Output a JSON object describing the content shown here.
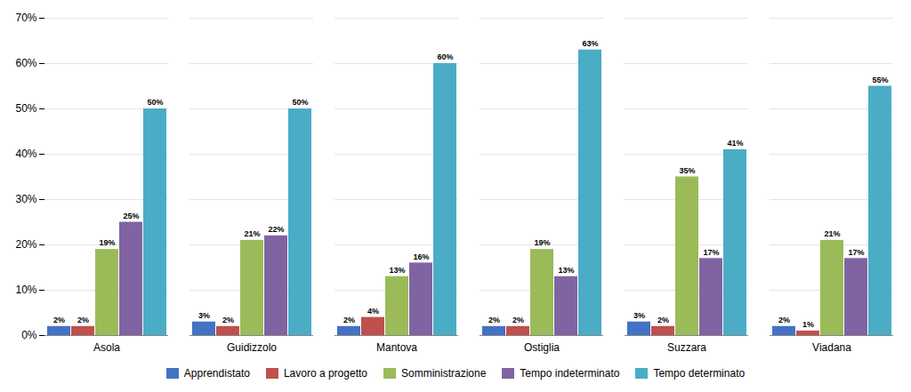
{
  "chart_data": {
    "type": "bar",
    "categories": [
      "Asola",
      "Guidizzolo",
      "Mantova",
      "Ostiglia",
      "Suzzara",
      "Viadana"
    ],
    "series": [
      {
        "name": "Apprendistato",
        "color": "#4472C4",
        "values": [
          2,
          3,
          2,
          2,
          3,
          2
        ],
        "value_labels": [
          "2%",
          "3%",
          "2%",
          "2%",
          "3%",
          "2%"
        ]
      },
      {
        "name": "Lavoro a progetto",
        "color": "#C0504D",
        "values": [
          2,
          2,
          4,
          2,
          2,
          1
        ],
        "value_labels": [
          "2%",
          "2%",
          "4%",
          "2%",
          "2%",
          "1%"
        ]
      },
      {
        "name": "Somministrazione",
        "color": "#9BBB59",
        "values": [
          19,
          21,
          13,
          19,
          35,
          21
        ],
        "value_labels": [
          "19%",
          "21%",
          "13%",
          "19%",
          "35%",
          "21%"
        ]
      },
      {
        "name": "Tempo indeterminato",
        "color": "#8064A2",
        "values": [
          25,
          22,
          16,
          13,
          17,
          17
        ],
        "value_labels": [
          "25%",
          "22%",
          "16%",
          "13%",
          "17%",
          "17%"
        ]
      },
      {
        "name": "Tempo determinato",
        "color": "#4BACC6",
        "values": [
          50,
          50,
          60,
          63,
          41,
          55
        ],
        "value_labels": [
          "50%",
          "50%",
          "60%",
          "63%",
          "41%",
          "55%"
        ]
      }
    ],
    "ylim": [
      0,
      70
    ],
    "yticks": [
      {
        "value": 0,
        "label": "0%"
      },
      {
        "value": 10,
        "label": "10%"
      },
      {
        "value": 20,
        "label": "20%"
      },
      {
        "value": 30,
        "label": "30%"
      },
      {
        "value": 40,
        "label": "40%"
      },
      {
        "value": 50,
        "label": "50%"
      },
      {
        "value": 60,
        "label": "60%"
      },
      {
        "value": 70,
        "label": "70%"
      }
    ],
    "grid": true,
    "legend": "bottom",
    "data_labels": true
  }
}
